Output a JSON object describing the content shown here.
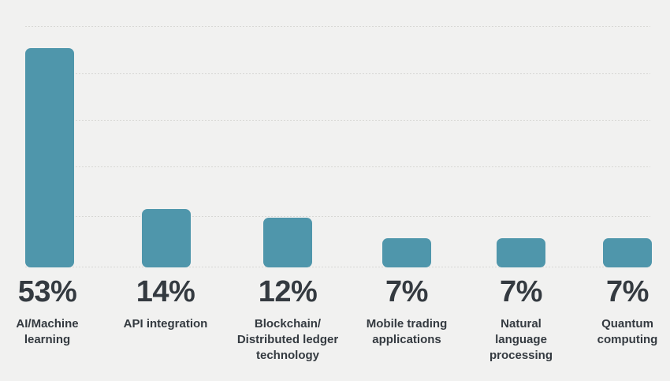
{
  "chart_data": {
    "type": "bar",
    "title": "",
    "xlabel": "",
    "ylabel": "",
    "categories": [
      "AI/Machine learning",
      "API integration",
      "Blockchain/Distributed ledger technology",
      "Mobile trading applications",
      "Natural language processing",
      "Quantum computing"
    ],
    "values": [
      53,
      14,
      12,
      7,
      7,
      7
    ],
    "unit": "%",
    "value_labels": [
      "53%",
      "14%",
      "12%",
      "7%",
      "7%",
      "7%"
    ],
    "ylim": [
      0,
      58
    ],
    "grid": "horizontal dotted, 6 lines including baseline, no axis labels",
    "legend": "none",
    "bar_color": "#4f96ab",
    "background_color": "#f1f1f0",
    "text_color": "#343a40",
    "gridline_color": "#d7d7d4"
  },
  "columns": [
    {
      "pct": "53%",
      "label_lines": [
        "AI/Machine",
        "learning"
      ]
    },
    {
      "pct": "14%",
      "label_lines": [
        "API integration"
      ]
    },
    {
      "pct": "12%",
      "label_lines": [
        "Blockchain/",
        "Distributed ledger",
        "technology"
      ]
    },
    {
      "pct": "7%",
      "label_lines": [
        "Mobile trading",
        "applications"
      ]
    },
    {
      "pct": "7%",
      "label_lines": [
        "Natural",
        "language",
        "processing"
      ]
    },
    {
      "pct": "7%",
      "label_lines": [
        "Quantum",
        "computing"
      ]
    }
  ]
}
